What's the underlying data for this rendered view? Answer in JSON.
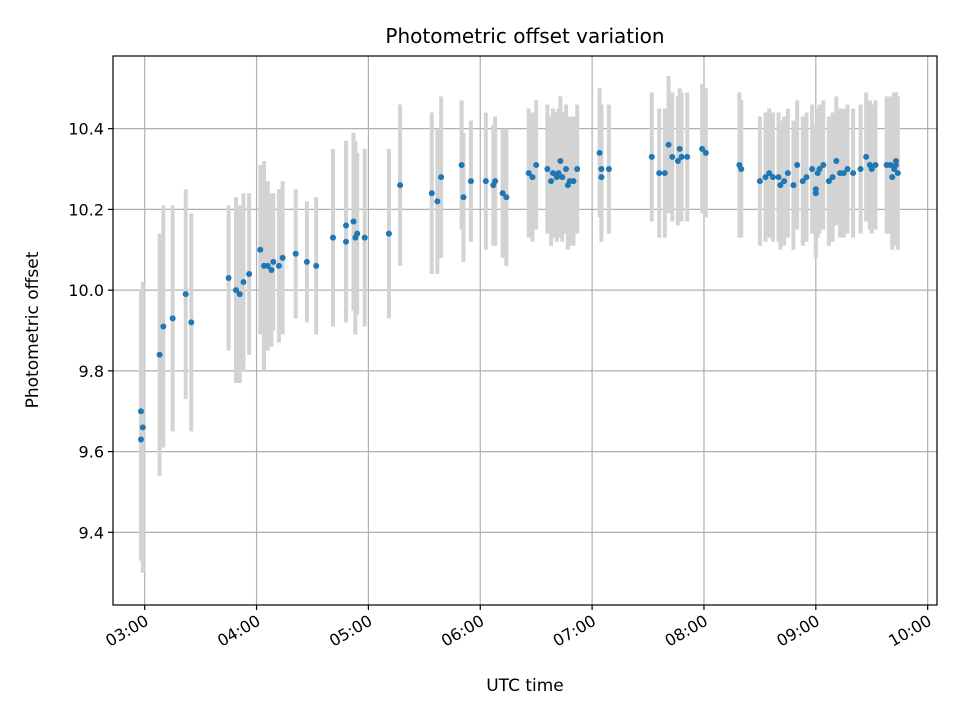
{
  "chart_data": {
    "type": "scatter",
    "title": "Photometric offset variation",
    "xlabel": "UTC time",
    "ylabel": "Photometric offset",
    "x_ticks": [
      "03:00",
      "04:00",
      "05:00",
      "06:00",
      "07:00",
      "08:00",
      "09:00",
      "10:00"
    ],
    "y_ticks": [
      "9.4",
      "9.6",
      "9.8",
      "10.0",
      "10.2",
      "10.4"
    ],
    "xlim": [
      "02:43",
      "10:05"
    ],
    "ylim": [
      9.22,
      10.58
    ],
    "grid": true,
    "colors": {
      "points": "#1f77b4",
      "errorbars": "#d3d3d3",
      "grid": "#b0b0b0"
    },
    "points": [
      {
        "x": "02:58",
        "y": 9.63,
        "err": 0.3
      },
      {
        "x": "02:58",
        "y": 9.7,
        "err": 0.3
      },
      {
        "x": "02:59",
        "y": 9.66,
        "err": 0.36
      },
      {
        "x": "03:08",
        "y": 9.84,
        "err": 0.3
      },
      {
        "x": "03:10",
        "y": 9.91,
        "err": 0.3
      },
      {
        "x": "03:15",
        "y": 9.93,
        "err": 0.28
      },
      {
        "x": "03:22",
        "y": 9.99,
        "err": 0.26
      },
      {
        "x": "03:25",
        "y": 9.92,
        "err": 0.27
      },
      {
        "x": "03:45",
        "y": 10.03,
        "err": 0.18
      },
      {
        "x": "03:49",
        "y": 10.0,
        "err": 0.23
      },
      {
        "x": "03:51",
        "y": 9.99,
        "err": 0.22
      },
      {
        "x": "03:53",
        "y": 10.02,
        "err": 0.22
      },
      {
        "x": "03:56",
        "y": 10.04,
        "err": 0.2
      },
      {
        "x": "04:02",
        "y": 10.1,
        "err": 0.21
      },
      {
        "x": "04:04",
        "y": 10.06,
        "err": 0.26
      },
      {
        "x": "04:06",
        "y": 10.06,
        "err": 0.21
      },
      {
        "x": "04:08",
        "y": 10.05,
        "err": 0.19
      },
      {
        "x": "04:09",
        "y": 10.07,
        "err": 0.17
      },
      {
        "x": "04:12",
        "y": 10.06,
        "err": 0.19
      },
      {
        "x": "04:14",
        "y": 10.08,
        "err": 0.19
      },
      {
        "x": "04:21",
        "y": 10.09,
        "err": 0.16
      },
      {
        "x": "04:27",
        "y": 10.07,
        "err": 0.15
      },
      {
        "x": "04:32",
        "y": 10.06,
        "err": 0.17
      },
      {
        "x": "04:41",
        "y": 10.13,
        "err": 0.22
      },
      {
        "x": "04:48",
        "y": 10.16,
        "err": 0.21
      },
      {
        "x": "04:48",
        "y": 10.12,
        "err": 0.2
      },
      {
        "x": "04:52",
        "y": 10.17,
        "err": 0.22
      },
      {
        "x": "04:53",
        "y": 10.13,
        "err": 0.24
      },
      {
        "x": "04:54",
        "y": 10.14,
        "err": 0.2
      },
      {
        "x": "04:58",
        "y": 10.13,
        "err": 0.22
      },
      {
        "x": "05:11",
        "y": 10.14,
        "err": 0.21
      },
      {
        "x": "05:17",
        "y": 10.26,
        "err": 0.2
      },
      {
        "x": "05:34",
        "y": 10.24,
        "err": 0.2
      },
      {
        "x": "05:37",
        "y": 10.22,
        "err": 0.18
      },
      {
        "x": "05:39",
        "y": 10.28,
        "err": 0.2
      },
      {
        "x": "05:50",
        "y": 10.31,
        "err": 0.16
      },
      {
        "x": "05:51",
        "y": 10.23,
        "err": 0.16
      },
      {
        "x": "05:55",
        "y": 10.27,
        "err": 0.15
      },
      {
        "x": "06:03",
        "y": 10.27,
        "err": 0.17
      },
      {
        "x": "06:07",
        "y": 10.26,
        "err": 0.15
      },
      {
        "x": "06:08",
        "y": 10.27,
        "err": 0.16
      },
      {
        "x": "06:12",
        "y": 10.24,
        "err": 0.16
      },
      {
        "x": "06:14",
        "y": 10.23,
        "err": 0.17
      },
      {
        "x": "06:26",
        "y": 10.29,
        "err": 0.16
      },
      {
        "x": "06:28",
        "y": 10.28,
        "err": 0.16
      },
      {
        "x": "06:30",
        "y": 10.31,
        "err": 0.16
      },
      {
        "x": "06:36",
        "y": 10.3,
        "err": 0.16
      },
      {
        "x": "06:38",
        "y": 10.27,
        "err": 0.16
      },
      {
        "x": "06:39",
        "y": 10.29,
        "err": 0.16
      },
      {
        "x": "06:41",
        "y": 10.28,
        "err": 0.16
      },
      {
        "x": "06:42",
        "y": 10.29,
        "err": 0.16
      },
      {
        "x": "06:43",
        "y": 10.32,
        "err": 0.16
      },
      {
        "x": "06:44",
        "y": 10.28,
        "err": 0.16
      },
      {
        "x": "06:46",
        "y": 10.3,
        "err": 0.16
      },
      {
        "x": "06:47",
        "y": 10.26,
        "err": 0.16
      },
      {
        "x": "06:48",
        "y": 10.27,
        "err": 0.16
      },
      {
        "x": "06:50",
        "y": 10.27,
        "err": 0.16
      },
      {
        "x": "06:52",
        "y": 10.3,
        "err": 0.16
      },
      {
        "x": "07:04",
        "y": 10.34,
        "err": 0.16
      },
      {
        "x": "07:05",
        "y": 10.28,
        "err": 0.16
      },
      {
        "x": "07:05",
        "y": 10.3,
        "err": 0.16
      },
      {
        "x": "07:09",
        "y": 10.3,
        "err": 0.16
      },
      {
        "x": "07:32",
        "y": 10.33,
        "err": 0.16
      },
      {
        "x": "07:36",
        "y": 10.29,
        "err": 0.16
      },
      {
        "x": "07:39",
        "y": 10.29,
        "err": 0.16
      },
      {
        "x": "07:41",
        "y": 10.36,
        "err": 0.17
      },
      {
        "x": "07:43",
        "y": 10.33,
        "err": 0.16
      },
      {
        "x": "07:46",
        "y": 10.32,
        "err": 0.16
      },
      {
        "x": "07:47",
        "y": 10.35,
        "err": 0.15
      },
      {
        "x": "07:48",
        "y": 10.33,
        "err": 0.16
      },
      {
        "x": "07:51",
        "y": 10.33,
        "err": 0.16
      },
      {
        "x": "07:59",
        "y": 10.35,
        "err": 0.16
      },
      {
        "x": "08:01",
        "y": 10.34,
        "err": 0.16
      },
      {
        "x": "08:19",
        "y": 10.31,
        "err": 0.18
      },
      {
        "x": "08:20",
        "y": 10.3,
        "err": 0.17
      },
      {
        "x": "08:30",
        "y": 10.27,
        "err": 0.16
      },
      {
        "x": "08:33",
        "y": 10.28,
        "err": 0.16
      },
      {
        "x": "08:35",
        "y": 10.29,
        "err": 0.16
      },
      {
        "x": "08:37",
        "y": 10.28,
        "err": 0.16
      },
      {
        "x": "08:40",
        "y": 10.28,
        "err": 0.16
      },
      {
        "x": "08:41",
        "y": 10.26,
        "err": 0.16
      },
      {
        "x": "08:43",
        "y": 10.27,
        "err": 0.16
      },
      {
        "x": "08:45",
        "y": 10.29,
        "err": 0.16
      },
      {
        "x": "08:48",
        "y": 10.26,
        "err": 0.16
      },
      {
        "x": "08:50",
        "y": 10.31,
        "err": 0.16
      },
      {
        "x": "08:53",
        "y": 10.27,
        "err": 0.16
      },
      {
        "x": "08:55",
        "y": 10.28,
        "err": 0.16
      },
      {
        "x": "08:58",
        "y": 10.3,
        "err": 0.16
      },
      {
        "x": "09:00",
        "y": 10.24,
        "err": 0.16
      },
      {
        "x": "09:00",
        "y": 10.25,
        "err": 0.16
      },
      {
        "x": "09:01",
        "y": 10.29,
        "err": 0.16
      },
      {
        "x": "09:02",
        "y": 10.3,
        "err": 0.16
      },
      {
        "x": "09:04",
        "y": 10.31,
        "err": 0.16
      },
      {
        "x": "09:07",
        "y": 10.27,
        "err": 0.16
      },
      {
        "x": "09:09",
        "y": 10.28,
        "err": 0.16
      },
      {
        "x": "09:11",
        "y": 10.32,
        "err": 0.16
      },
      {
        "x": "09:13",
        "y": 10.29,
        "err": 0.16
      },
      {
        "x": "09:15",
        "y": 10.29,
        "err": 0.16
      },
      {
        "x": "09:17",
        "y": 10.3,
        "err": 0.16
      },
      {
        "x": "09:20",
        "y": 10.29,
        "err": 0.16
      },
      {
        "x": "09:24",
        "y": 10.3,
        "err": 0.16
      },
      {
        "x": "09:27",
        "y": 10.33,
        "err": 0.16
      },
      {
        "x": "09:29",
        "y": 10.31,
        "err": 0.16
      },
      {
        "x": "09:30",
        "y": 10.3,
        "err": 0.16
      },
      {
        "x": "09:32",
        "y": 10.31,
        "err": 0.16
      },
      {
        "x": "09:38",
        "y": 10.31,
        "err": 0.17
      },
      {
        "x": "09:40",
        "y": 10.31,
        "err": 0.17
      },
      {
        "x": "09:41",
        "y": 10.28,
        "err": 0.18
      },
      {
        "x": "09:42",
        "y": 10.3,
        "err": 0.19
      },
      {
        "x": "09:43",
        "y": 10.32,
        "err": 0.17
      },
      {
        "x": "09:43",
        "y": 10.31,
        "err": 0.17
      },
      {
        "x": "09:44",
        "y": 10.29,
        "err": 0.19
      }
    ]
  }
}
